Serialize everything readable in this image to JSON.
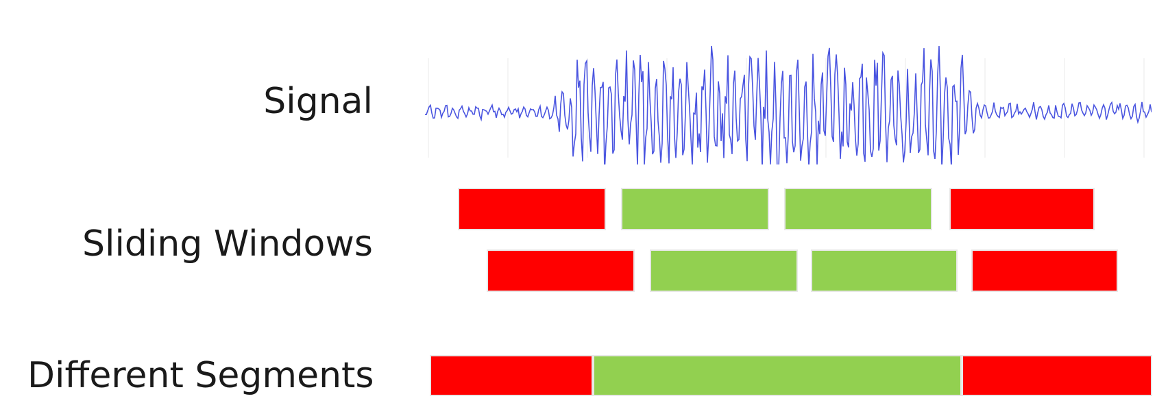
{
  "labels": {
    "signal": "Signal",
    "sliding_windows": "Sliding Windows",
    "different_segments": "Different Segments"
  },
  "colors": {
    "active": "#92d050",
    "inactive": "#ff0000",
    "signal": "#4a55e0",
    "grid": "#eaeaea"
  },
  "sliding_windows": {
    "row1": [
      "inactive",
      "active",
      "active",
      "inactive"
    ],
    "row2": [
      "inactive",
      "active",
      "active",
      "inactive"
    ]
  },
  "different_segments": [
    "inactive",
    "active",
    "inactive"
  ]
}
